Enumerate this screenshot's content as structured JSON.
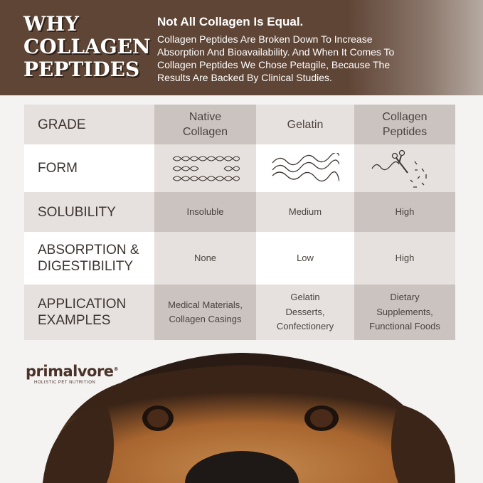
{
  "header": {
    "title_lines": [
      "WHY",
      "COLLAGEN",
      "PEPTIDES"
    ],
    "subtitle": "Not All Collagen Is Equal.",
    "body": "Collagen Peptides Are Broken Down To Increase Absorption And Bioavailability. And When It Comes To Collagen Peptides We Chose Petagile, Because The Results Are Backed By Clinical Studies."
  },
  "table": {
    "columns": [
      "Native Collagen",
      "Gelatin",
      "Collagen Peptides"
    ],
    "rows": [
      {
        "label": "GRADE"
      },
      {
        "label": "FORM",
        "icons": [
          "triple-helix-icon",
          "wavy-strands-icon",
          "scissors-cut-strand-icon"
        ]
      },
      {
        "label": "SOLUBILITY",
        "values": [
          "Insoluble",
          "Medium",
          "High"
        ]
      },
      {
        "label": "ABSORPTION & DIGESTIBILITY",
        "values": [
          "None",
          "Low",
          "High"
        ]
      },
      {
        "label": "APPLICATION EXAMPLES",
        "values": [
          "Medical Materials, Collagen Casings",
          "Gelatin Desserts, Confectionery",
          "Dietary Supplements, Functional Foods"
        ]
      }
    ]
  },
  "logo": {
    "name": "primalvore",
    "tagline": "HOLISTIC PET NUTRITION",
    "registered": "®"
  },
  "colors": {
    "brown": "#5f4536",
    "light": "#e6e1df",
    "dark": "#cbc3bf"
  }
}
